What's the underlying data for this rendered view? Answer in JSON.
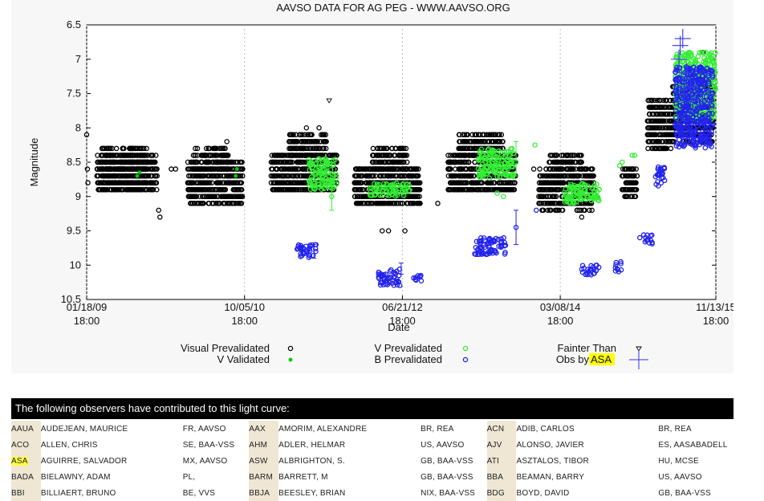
{
  "chart_data": {
    "type": "scatter",
    "title": "AAVSO DATA FOR AG PEG - WWW.AAVSO.ORG",
    "xlabel": "Date",
    "ylabel": "Magnitude",
    "ylim": [
      10.5,
      6.5
    ],
    "y_inverted": true,
    "xlim": [
      0,
      2491
    ],
    "grid": "vertical dashed lines at ticks",
    "x_ticks": [
      {
        "x": 0,
        "line1": "01/18/09",
        "line2": "18:00"
      },
      {
        "x": 625,
        "line1": "10/05/10",
        "line2": "18:00"
      },
      {
        "x": 1250,
        "line1": "06/21/12",
        "line2": "18:00"
      },
      {
        "x": 1875,
        "line1": "03/08/14",
        "line2": "18:00"
      },
      {
        "x": 2491,
        "line1": "11/13/15",
        "line2": "18:00"
      }
    ],
    "y_ticks": [
      "6.5",
      "7",
      "7.5",
      "8",
      "8.5",
      "9",
      "9.5",
      "10",
      "10.5"
    ],
    "series": [
      {
        "name": "Visual Prevalidated",
        "color": "#000000",
        "marker": "ring",
        "clusters": [
          {
            "x0": 40,
            "x1": 280,
            "y0": 8.4,
            "y1": 8.95
          },
          {
            "x0": 60,
            "x1": 240,
            "y0": 8.3,
            "y1": 8.9
          },
          {
            "x0": 400,
            "x1": 620,
            "y0": 8.5,
            "y1": 9.1
          },
          {
            "x0": 420,
            "x1": 560,
            "y0": 8.3,
            "y1": 8.6
          },
          {
            "x0": 730,
            "x1": 990,
            "y0": 8.35,
            "y1": 8.95
          },
          {
            "x0": 800,
            "x1": 950,
            "y0": 8.1,
            "y1": 8.4
          },
          {
            "x0": 1060,
            "x1": 1320,
            "y0": 8.55,
            "y1": 9.15
          },
          {
            "x0": 1130,
            "x1": 1270,
            "y0": 8.3,
            "y1": 8.6
          },
          {
            "x0": 1430,
            "x1": 1700,
            "y0": 8.4,
            "y1": 8.95
          },
          {
            "x0": 1470,
            "x1": 1650,
            "y0": 8.1,
            "y1": 8.4
          },
          {
            "x0": 1790,
            "x1": 2010,
            "y0": 8.6,
            "y1": 9.2
          },
          {
            "x0": 1830,
            "x1": 1960,
            "y0": 8.35,
            "y1": 8.6
          },
          {
            "x0": 2120,
            "x1": 2180,
            "y0": 8.55,
            "y1": 9.0
          },
          {
            "x0": 2220,
            "x1": 2320,
            "y0": 7.6,
            "y1": 8.3
          },
          {
            "x0": 2320,
            "x1": 2480,
            "y0": 7.3,
            "y1": 8.2
          }
        ],
        "points": [
          [
            0,
            8.1
          ],
          [
            5,
            8.8
          ],
          [
            3,
            8.6
          ],
          [
            290,
            9.3
          ],
          [
            285,
            9.2
          ],
          [
            335,
            8.6
          ],
          [
            352,
            8.6
          ],
          [
            420,
            9.1
          ],
          [
            555,
            8.2
          ],
          [
            560,
            8.4
          ],
          [
            870,
            8.0
          ],
          [
            920,
            8.0
          ],
          [
            1170,
            9.5
          ],
          [
            1195,
            9.5
          ],
          [
            1260,
            9.5
          ],
          [
            1320,
            9.1
          ],
          [
            1390,
            9.1
          ],
          [
            1770,
            8.6
          ],
          [
            1960,
            9.3
          ],
          [
            2020,
            9.0
          ],
          [
            2440,
            6.9
          ],
          [
            2480,
            7.4
          ]
        ]
      },
      {
        "name": "V Validated",
        "color": "#00cc00",
        "marker": "dot",
        "clusters": [],
        "points": [
          [
            200,
            8.7
          ],
          [
            210,
            8.65
          ],
          [
            590,
            8.7
          ],
          [
            595,
            8.6
          ],
          [
            1190,
            8.9
          ],
          [
            1200,
            8.85
          ]
        ]
      },
      {
        "name": "V Prevalidated",
        "color": "#33ee33",
        "marker": "ring",
        "clusters": [
          {
            "x0": 880,
            "x1": 990,
            "y0": 8.45,
            "y1": 8.9
          },
          {
            "x0": 1120,
            "x1": 1280,
            "y0": 8.8,
            "y1": 9.0
          },
          {
            "x0": 1550,
            "x1": 1690,
            "y0": 8.3,
            "y1": 8.75
          },
          {
            "x0": 1890,
            "x1": 2030,
            "y0": 8.8,
            "y1": 9.1
          },
          {
            "x0": 2330,
            "x1": 2490,
            "y0": 6.9,
            "y1": 7.9
          }
        ],
        "points": [
          [
            970,
            9.0
          ],
          [
            1625,
            8.95
          ],
          [
            1650,
            9.0
          ],
          [
            1700,
            8.5
          ],
          [
            1775,
            8.25
          ],
          [
            2110,
            8.55
          ],
          [
            2120,
            8.5
          ],
          [
            2160,
            8.4
          ],
          [
            2170,
            8.4
          ]
        ],
        "errorbars": [
          [
            970,
            9.0,
            0.2
          ],
          [
            1700,
            8.45,
            0.25
          ]
        ]
      },
      {
        "name": "B Prevalidated",
        "color": "#2222ee",
        "marker": "ring",
        "clusters": [
          {
            "x0": 830,
            "x1": 910,
            "y0": 9.7,
            "y1": 9.9
          },
          {
            "x0": 1155,
            "x1": 1240,
            "y0": 10.05,
            "y1": 10.3
          },
          {
            "x0": 1290,
            "x1": 1330,
            "y0": 10.15,
            "y1": 10.25
          },
          {
            "x0": 1530,
            "x1": 1660,
            "y0": 9.6,
            "y1": 9.85
          },
          {
            "x0": 1960,
            "x1": 2030,
            "y0": 10.0,
            "y1": 10.15
          },
          {
            "x0": 2090,
            "x1": 2120,
            "y0": 9.95,
            "y1": 10.1
          },
          {
            "x0": 2200,
            "x1": 2240,
            "y0": 9.55,
            "y1": 9.7
          },
          {
            "x0": 2250,
            "x1": 2290,
            "y0": 8.55,
            "y1": 8.85
          },
          {
            "x0": 2330,
            "x1": 2480,
            "y0": 7.1,
            "y1": 8.3
          }
        ],
        "points": [
          [
            1700,
            9.45
          ],
          [
            1780,
            9.2
          ],
          [
            2190,
            9.6
          ]
        ],
        "errorbars": [
          [
            1700,
            9.45,
            0.25
          ],
          [
            1245,
            10.05,
            0.08
          ],
          [
            900,
            9.8,
            0.1
          ]
        ]
      },
      {
        "name": "Fainter Than",
        "color": "#000000",
        "marker": "triangle-down",
        "clusters": [],
        "points": [
          [
            520,
            8.6
          ],
          [
            960,
            7.6
          ]
        ]
      },
      {
        "name": "Obs by ASA",
        "color": "#3333ee",
        "marker": "cross",
        "clusters": [],
        "points": [
          [
            2350,
            6.8
          ],
          [
            2360,
            6.7
          ],
          [
            2345,
            7.0
          ],
          [
            2375,
            7.2
          ],
          [
            2355,
            7.3
          ],
          [
            2390,
            7.4
          ],
          [
            2365,
            7.5
          ],
          [
            2400,
            7.6
          ]
        ]
      }
    ]
  },
  "legend": {
    "col1": [
      "Visual Prevalidated",
      "V Validated"
    ],
    "col2": [
      "V Prevalidated",
      "B Prevalidated"
    ],
    "col3_line1": "Fainter Than",
    "col3_line2_prefix": "Obs by ",
    "col3_line2_highlight": "ASA"
  },
  "observers": {
    "header": "The following observers have contributed to this light curve:",
    "highlight_code": "ASA",
    "rows": [
      [
        [
          "AAUA",
          "AUDEJEAN, MAURICE",
          "FR, AAVSO"
        ],
        [
          "AAX",
          "AMORIM, ALEXANDRE",
          "BR, REA"
        ],
        [
          "ACN",
          "ADIB, CARLOS",
          "BR, REA"
        ]
      ],
      [
        [
          "ACO",
          "ALLEN, CHRIS",
          "SE, BAA-VSS"
        ],
        [
          "AHM",
          "ADLER, HELMAR",
          "US, AAVSO"
        ],
        [
          "AJV",
          "ALONSO, JAVIER",
          "ES, AASABADELL"
        ]
      ],
      [
        [
          "ASA",
          "AGUIRRE, SALVADOR",
          "MX, AAVSO"
        ],
        [
          "ASW",
          "ALBRIGHTON, S.",
          "GB, BAA-VSS"
        ],
        [
          "ATI",
          "ASZTALOS, TIBOR",
          "HU, MCSE"
        ]
      ],
      [
        [
          "BADA",
          "BIELAWNY, ADAM",
          "PL,"
        ],
        [
          "BARM",
          "BARRETT, M",
          "GB, BAA-VSS"
        ],
        [
          "BBA",
          "BEAMAN, BARRY",
          "US, AAVSO"
        ]
      ],
      [
        [
          "BBI",
          "BILLIAERT, BRUNO",
          "BE, VVS"
        ],
        [
          "BBJA",
          "BEESLEY, BRIAN",
          "NIX, BAA-VSS"
        ],
        [
          "BDG",
          "BOYD, DAVID",
          "GB, BAA-VSS"
        ]
      ]
    ]
  }
}
